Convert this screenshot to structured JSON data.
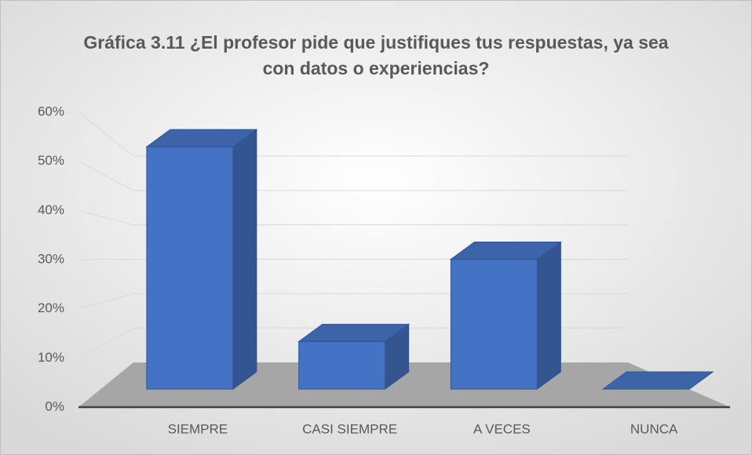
{
  "chart_data": {
    "type": "bar3d",
    "title": "Gráfica 3.11 ¿El profesor pide que justifiques tus respuestas, ya sea con datos o experiencias?",
    "categories": [
      "SIEMPRE",
      "CASI SIEMPRE",
      "A VECES",
      "NUNCA"
    ],
    "values": [
      56,
      11,
      30,
      0
    ],
    "color": "#4472c4",
    "ylim": [
      0,
      60
    ],
    "yticks": [
      {
        "value": 0,
        "label": "0%"
      },
      {
        "value": 10,
        "label": "10%"
      },
      {
        "value": 20,
        "label": "20%"
      },
      {
        "value": 30,
        "label": "30%"
      },
      {
        "value": 40,
        "label": "40%"
      },
      {
        "value": 50,
        "label": "50%"
      },
      {
        "value": 60,
        "label": "60%"
      }
    ],
    "grid": true
  }
}
